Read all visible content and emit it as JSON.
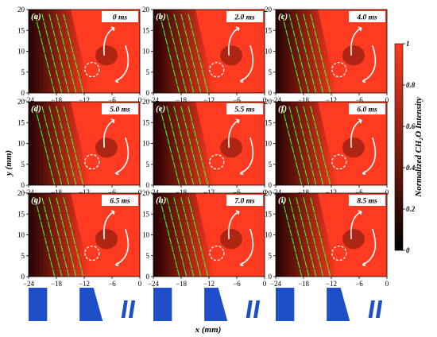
{
  "figure": {
    "x_axis_title": "x (mm)",
    "y_axis_title": "y (mm)",
    "colorbar": {
      "title": "Normalized CH₂O Intensity",
      "ticks": [
        "1",
        "0.8",
        "0.6",
        "0.4",
        "0.2",
        "0"
      ],
      "tick_values": [
        1,
        0.8,
        0.6,
        0.4,
        0.2,
        0
      ],
      "colors": [
        "#000000",
        "#ff3a20"
      ]
    },
    "x_ticks": [
      "−24",
      "−18",
      "−12",
      "−6",
      "0"
    ],
    "y_ticks": [
      "0",
      "5",
      "10",
      "15",
      "20"
    ],
    "x_range": [
      -24,
      0
    ],
    "y_range": [
      0,
      20
    ],
    "panels": [
      {
        "label": "(a)",
        "time": "0 ms"
      },
      {
        "label": "(b)",
        "time": "2.0 ms"
      },
      {
        "label": "(c)",
        "time": "4.0 ms"
      },
      {
        "label": "(d)",
        "time": "5.0 ms"
      },
      {
        "label": "(e)",
        "time": "5.5 ms"
      },
      {
        "label": "(f)",
        "time": "6.0 ms"
      },
      {
        "label": "(g)",
        "time": "6.5 ms"
      },
      {
        "label": "(h)",
        "time": "7.0 ms"
      },
      {
        "label": "(i)",
        "time": "8.5 ms"
      }
    ],
    "colors": {
      "field_high": "#ff3a20",
      "field_low": "#1a0000",
      "vector": "#33ff33",
      "burner": "#1f4fc8",
      "annotation": "#ffffff"
    }
  }
}
